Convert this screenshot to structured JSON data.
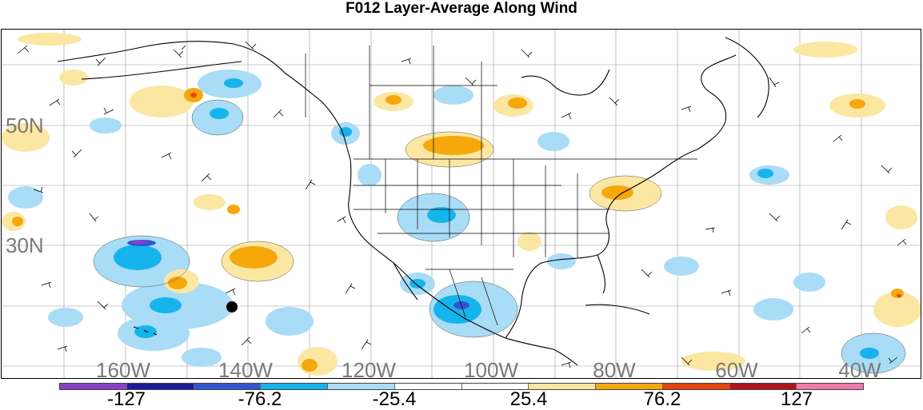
{
  "title": "F012 Layer-Average Along Wind",
  "lat_labels": [
    "50N",
    "30N"
  ],
  "lon_labels": [
    "160W",
    "140W",
    "120W",
    "100W",
    "80W",
    "60W",
    "40W"
  ],
  "colorbar": {
    "colors": [
      "#8a3fc8",
      "#1a1a9a",
      "#2f56d0",
      "#16b4ec",
      "#a9dcf6",
      "#ffffff",
      "#ffffff",
      "#fbe7a1",
      "#f5a70c",
      "#e9420c",
      "#b3141a",
      "#f07aa8"
    ],
    "labels": [
      "-127",
      "-76.2",
      "-25.4",
      "25.4",
      "76.2",
      "127"
    ]
  },
  "legend_colors": {
    "light_blue": "#a9dcf6",
    "mid_blue": "#16b4ec",
    "dark_blue": "#2f56d0",
    "light_yellow": "#fbe7a1",
    "orange": "#f5a70c",
    "red": "#e9420c",
    "purple": "#8a3fc8"
  },
  "marker": "black-dot"
}
